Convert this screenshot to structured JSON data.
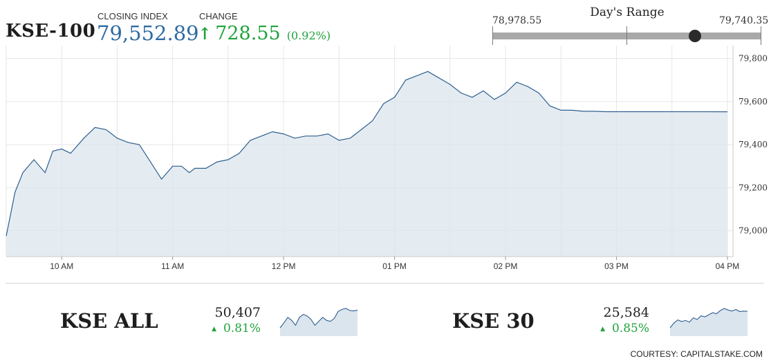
{
  "header": {
    "index_name": "KSE-100",
    "closing_label": "CLOSING INDEX",
    "closing_value": "79,552.89",
    "change_label": "CHANGE",
    "change_arrow": "↑",
    "change_value": "728.55",
    "change_percent": "(0.92%)"
  },
  "days_range": {
    "title": "Day's Range",
    "low": "78,978.55",
    "high": "79,740.35",
    "low_value": 78978.55,
    "high_value": 79740.35,
    "current_value": 79552.89
  },
  "chart_data": {
    "type": "area",
    "ylim": [
      78880,
      79860
    ],
    "yticks": [
      79000,
      79200,
      79400,
      79600,
      79800
    ],
    "ytick_labels": [
      "79,000",
      "79,200",
      "79,400",
      "79,600",
      "79,800"
    ],
    "xlim": [
      9.5,
      16.05
    ],
    "xticks": [
      10,
      11,
      12,
      13,
      14,
      15,
      16
    ],
    "xtick_labels": [
      "10 AM",
      "11 AM",
      "12 PM",
      "01 PM",
      "02 PM",
      "03 PM",
      "04 PM"
    ],
    "grid": true,
    "colors": {
      "line": "#2f5f8e",
      "fill": "#dbe5ee",
      "grid": "#e6e6e6"
    },
    "x": [
      9.5,
      9.58,
      9.65,
      9.75,
      9.85,
      9.92,
      10.0,
      10.08,
      10.2,
      10.3,
      10.4,
      10.5,
      10.6,
      10.7,
      10.8,
      10.9,
      11.0,
      11.08,
      11.15,
      11.2,
      11.3,
      11.4,
      11.5,
      11.6,
      11.7,
      11.8,
      11.9,
      12.0,
      12.1,
      12.2,
      12.3,
      12.4,
      12.5,
      12.6,
      12.7,
      12.8,
      12.9,
      13.0,
      13.1,
      13.2,
      13.3,
      13.4,
      13.5,
      13.6,
      13.7,
      13.8,
      13.9,
      14.0,
      14.1,
      14.2,
      14.3,
      14.4,
      14.5,
      14.6,
      14.7,
      14.8,
      14.9,
      15.0,
      15.1,
      15.15,
      15.25,
      15.35,
      15.4,
      15.5,
      16.0
    ],
    "values": [
      78975,
      79180,
      79270,
      79330,
      79270,
      79370,
      79380,
      79360,
      79430,
      79480,
      79470,
      79430,
      79410,
      79400,
      79320,
      79240,
      79300,
      79300,
      79270,
      79290,
      79290,
      79320,
      79330,
      79360,
      79420,
      79440,
      79460,
      79450,
      79430,
      79440,
      79440,
      79450,
      79420,
      79430,
      79470,
      79510,
      79590,
      79620,
      79700,
      79720,
      79740,
      79710,
      79680,
      79640,
      79620,
      79650,
      79610,
      79640,
      79690,
      79670,
      79640,
      79580,
      79560,
      79560,
      79555,
      79555,
      79553,
      79553,
      79553,
      79553,
      79553,
      79553,
      79553,
      79553,
      79552.89
    ]
  },
  "sub_indices": [
    {
      "name": "KSE ALL",
      "value": "50,407",
      "change": "0.81%",
      "spark_values": [
        50050,
        50150,
        50260,
        50200,
        50100,
        50260,
        50320,
        50290,
        50220,
        50100,
        50180,
        50260,
        50200,
        50180,
        50240,
        50380,
        50420,
        50440,
        50400,
        50390,
        50407
      ]
    },
    {
      "name": "KSE 30",
      "value": "25,584",
      "change": "0.85%",
      "spark_values": [
        25270,
        25360,
        25420,
        25390,
        25410,
        25380,
        25460,
        25430,
        25500,
        25480,
        25520,
        25560,
        25540,
        25600,
        25640,
        25610,
        25590,
        25620,
        25580,
        25590,
        25584
      ]
    }
  ],
  "up_triangle": "▲",
  "footer": {
    "courtesy": "COURTESY: CAPITALSTAKE.COM"
  }
}
